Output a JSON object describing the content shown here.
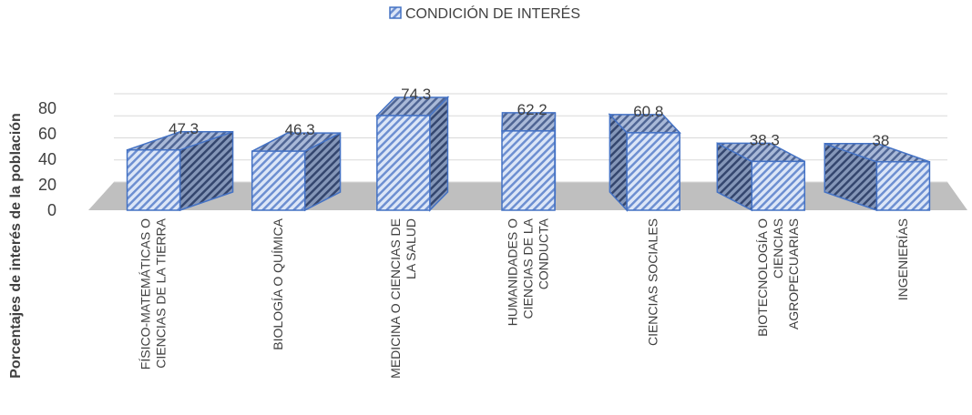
{
  "chart_data": {
    "type": "bar3d",
    "ylabel": "Porcentajes de interés de la población",
    "categories": [
      "FÍSICO-MATEMÁTICAS O CIENCIAS DE LA TIERRA",
      "BIOLOGÍA O QUÍMICA",
      "MEDICINA O CIENCIAS DE LA SALUD",
      "HUMANIDADES O CIENCIAS DE LA CONDUCTA",
      "CIENCIAS SOCIALES",
      "BIOTECNOLOGÍA O CIENCIAS AGROPECUARIAS",
      "INGENIERÍAS"
    ],
    "series": [
      {
        "name": "CONDICIÓN DE INTERÉS",
        "color": "#4472c4",
        "values": [
          47.3,
          46.3,
          74.3,
          62.2,
          60.8,
          38.3,
          38
        ]
      }
    ],
    "ylim": [
      0,
      80
    ],
    "yticks": [
      0,
      20,
      40,
      60,
      80
    ],
    "grid": true,
    "legend": "top"
  }
}
